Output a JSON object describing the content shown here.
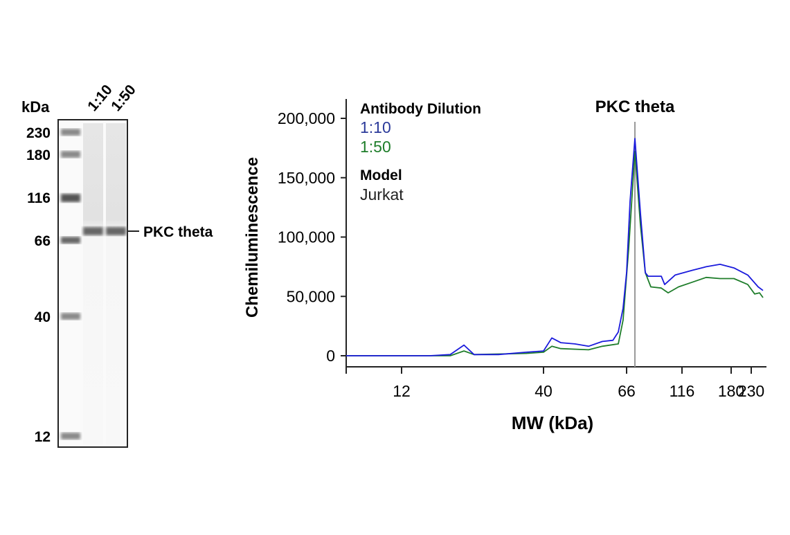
{
  "blot": {
    "unit_label": "kDa",
    "lanes": [
      "1:10",
      "1:50"
    ],
    "markers": [
      230,
      180,
      116,
      66,
      40,
      12
    ],
    "band_label": "PKC theta",
    "band_mw": 74
  },
  "chart_data": {
    "type": "line",
    "title": "PKC theta",
    "xlabel": "MW (kDa)",
    "ylabel": "Chemiluminescence",
    "xticks": [
      12,
      40,
      66,
      116,
      180,
      230
    ],
    "yticks": [
      0,
      50000,
      100000,
      150000,
      200000
    ],
    "ytick_labels": [
      "0",
      "50,000",
      "100,000",
      "150,000",
      "200,000"
    ],
    "ylim": [
      -9000,
      215000
    ],
    "xlim": [
      1.1,
      265
    ],
    "marker_line_x": 73.5,
    "legend": {
      "heading1": "Antibody Dilution",
      "heading2": "Model",
      "model": "Jurkat"
    },
    "series": [
      {
        "name": "1:10",
        "color": "#1a1adc",
        "x": [
          1.1,
          17.5,
          21.6,
          24.3,
          26.3,
          31.1,
          36.6,
          40,
          42.6,
          45.4,
          49.8,
          54.1,
          58.4,
          61.7,
          63.4,
          64.9,
          66,
          69.1,
          73.5,
          78.5,
          82.9,
          85.4,
          97.3,
          100.4,
          109.8,
          129.5,
          147.5,
          165.6,
          186.9,
          221.4,
          247.5,
          259.8
        ],
        "y": [
          0,
          0,
          1000,
          9000,
          1000,
          1000,
          3000,
          4000,
          15000,
          11000,
          10000,
          8000,
          12000,
          13000,
          20000,
          40000,
          70000,
          130000,
          183000,
          120000,
          70000,
          67000,
          67000,
          60000,
          68000,
          72000,
          75000,
          77000,
          74000,
          68000,
          58000,
          55000
        ]
      },
      {
        "name": "1:50",
        "color": "#1e7d2a",
        "x": [
          1.1,
          21.6,
          24.3,
          26.3,
          36.6,
          40,
          42.6,
          45.4,
          54.1,
          58.4,
          63.4,
          64.9,
          67.9,
          73.5,
          78.5,
          82.9,
          87.9,
          97.3,
          103.5,
          112.9,
          129.5,
          147.5,
          165.6,
          186.9,
          221.4,
          238.8,
          251,
          259.8
        ],
        "y": [
          0,
          0,
          4000,
          1000,
          2000,
          3000,
          8000,
          6000,
          5000,
          8000,
          10000,
          30000,
          90000,
          172000,
          110000,
          70000,
          58000,
          57000,
          53000,
          58000,
          62000,
          66000,
          65000,
          65000,
          60000,
          52000,
          53000,
          49000
        ]
      }
    ]
  }
}
